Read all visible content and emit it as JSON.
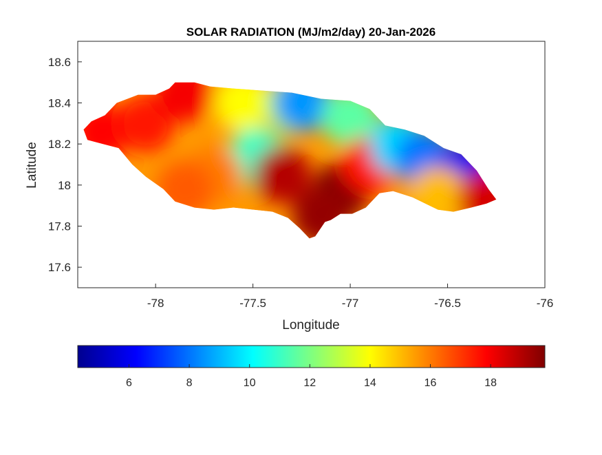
{
  "chart_data": {
    "type": "heatmap",
    "title": "SOLAR RADIATION (MJ/m2/day) 20-Jan-2026",
    "xlabel": "Longitude",
    "ylabel": "Latitude",
    "xlim": [
      -78.4,
      -76.0
    ],
    "ylim": [
      17.5,
      18.7
    ],
    "xticks": [
      -78,
      -77.5,
      -77,
      -76.5,
      -76
    ],
    "xtick_labels": [
      "-78",
      "-77.5",
      "-77",
      "-76.5",
      "-76"
    ],
    "yticks": [
      17.6,
      17.8,
      18.0,
      18.2,
      18.4,
      18.6
    ],
    "ytick_labels": [
      "17.6",
      "17.8",
      "18",
      "18.2",
      "18.4",
      "18.6"
    ],
    "colormap": "jet",
    "colorbar": {
      "position": "bottom",
      "range": [
        4.3,
        19.8
      ],
      "ticks": [
        6,
        8,
        10,
        12,
        14,
        16,
        18
      ],
      "tick_labels": [
        "6",
        "8",
        "10",
        "12",
        "14",
        "16",
        "18"
      ]
    },
    "island_outline": [
      [
        -78.37,
        18.27
      ],
      [
        -78.33,
        18.31
      ],
      [
        -78.26,
        18.34
      ],
      [
        -78.2,
        18.4
      ],
      [
        -78.09,
        18.44
      ],
      [
        -78.0,
        18.44
      ],
      [
        -77.93,
        18.47
      ],
      [
        -77.9,
        18.5
      ],
      [
        -77.8,
        18.5
      ],
      [
        -77.72,
        18.48
      ],
      [
        -77.6,
        18.47
      ],
      [
        -77.45,
        18.46
      ],
      [
        -77.3,
        18.45
      ],
      [
        -77.15,
        18.42
      ],
      [
        -77.0,
        18.41
      ],
      [
        -76.9,
        18.37
      ],
      [
        -76.82,
        18.29
      ],
      [
        -76.72,
        18.27
      ],
      [
        -76.62,
        18.24
      ],
      [
        -76.52,
        18.18
      ],
      [
        -76.43,
        18.15
      ],
      [
        -76.35,
        18.07
      ],
      [
        -76.29,
        17.98
      ],
      [
        -76.25,
        17.93
      ],
      [
        -76.3,
        17.91
      ],
      [
        -76.38,
        17.89
      ],
      [
        -76.47,
        17.87
      ],
      [
        -76.55,
        17.88
      ],
      [
        -76.68,
        17.94
      ],
      [
        -76.78,
        17.97
      ],
      [
        -76.85,
        17.96
      ],
      [
        -76.92,
        17.89
      ],
      [
        -76.99,
        17.86
      ],
      [
        -77.05,
        17.86
      ],
      [
        -77.1,
        17.83
      ],
      [
        -77.13,
        17.82
      ],
      [
        -77.18,
        17.75
      ],
      [
        -77.21,
        17.74
      ],
      [
        -77.26,
        17.79
      ],
      [
        -77.32,
        17.84
      ],
      [
        -77.4,
        17.87
      ],
      [
        -77.5,
        17.88
      ],
      [
        -77.6,
        17.89
      ],
      [
        -77.7,
        17.88
      ],
      [
        -77.8,
        17.89
      ],
      [
        -77.9,
        17.92
      ],
      [
        -77.96,
        17.98
      ],
      [
        -78.05,
        18.04
      ],
      [
        -78.12,
        18.1
      ],
      [
        -78.19,
        18.18
      ],
      [
        -78.27,
        18.2
      ],
      [
        -78.35,
        18.22
      ]
    ],
    "regions": [
      {
        "lon": -78.28,
        "lat": 18.26,
        "value": 17.8
      },
      {
        "lon": -78.05,
        "lat": 18.3,
        "value": 17.5
      },
      {
        "lon": -77.85,
        "lat": 18.45,
        "value": 18.0
      },
      {
        "lon": -77.55,
        "lat": 18.4,
        "value": 14.0
      },
      {
        "lon": -77.3,
        "lat": 18.39,
        "value": 13.0
      },
      {
        "lon": -77.25,
        "lat": 18.4,
        "value": 8.5
      },
      {
        "lon": -77.0,
        "lat": 18.33,
        "value": 11.5
      },
      {
        "lon": -77.48,
        "lat": 18.14,
        "value": 11.0
      },
      {
        "lon": -77.7,
        "lat": 18.05,
        "value": 16.0
      },
      {
        "lon": -77.85,
        "lat": 17.98,
        "value": 16.5
      },
      {
        "lon": -77.35,
        "lat": 18.05,
        "value": 19.0
      },
      {
        "lon": -77.05,
        "lat": 17.97,
        "value": 19.8
      },
      {
        "lon": -77.15,
        "lat": 17.85,
        "value": 19.5
      },
      {
        "lon": -76.9,
        "lat": 18.1,
        "value": 17.5
      },
      {
        "lon": -76.75,
        "lat": 18.19,
        "value": 9.5
      },
      {
        "lon": -76.62,
        "lat": 18.13,
        "value": 8.0
      },
      {
        "lon": -76.42,
        "lat": 18.07,
        "value": 6.0
      },
      {
        "lon": -76.55,
        "lat": 17.95,
        "value": 15.0
      },
      {
        "lon": -76.3,
        "lat": 17.93,
        "value": 18.5
      }
    ]
  }
}
